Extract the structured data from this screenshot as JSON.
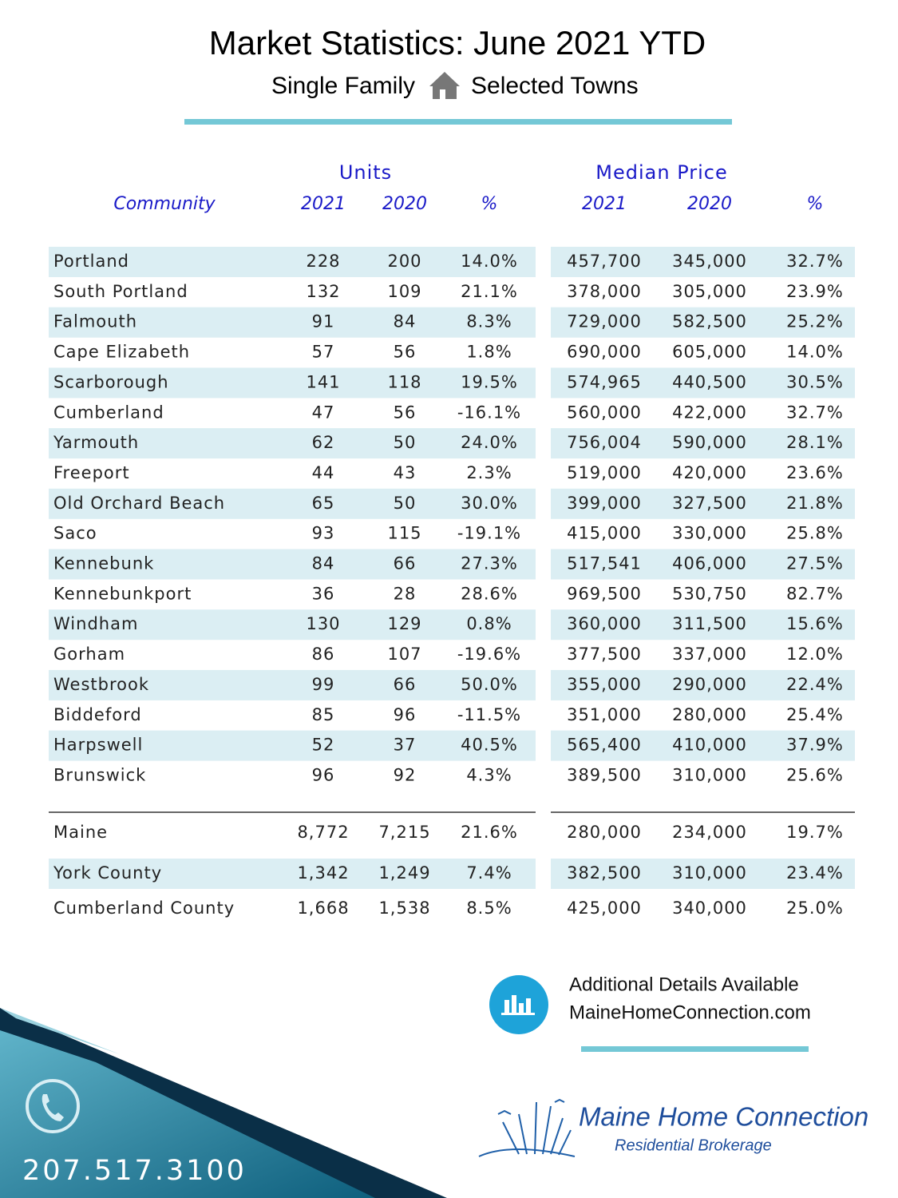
{
  "header": {
    "title": "Market Statistics: June 2021 YTD",
    "subtitle_left": "Single Family",
    "subtitle_right": "Selected Towns"
  },
  "table": {
    "group_headers": [
      "Units",
      "Median Price"
    ],
    "columns": [
      "Community",
      "2021",
      "2020",
      "%",
      "2021",
      "2020",
      "%"
    ],
    "rows": [
      [
        "Portland",
        "228",
        "200",
        "14.0%",
        "457,700",
        "345,000",
        "32.7%"
      ],
      [
        "South Portland",
        "132",
        "109",
        "21.1%",
        "378,000",
        "305,000",
        "23.9%"
      ],
      [
        "Falmouth",
        "91",
        "84",
        "8.3%",
        "729,000",
        "582,500",
        "25.2%"
      ],
      [
        "Cape Elizabeth",
        "57",
        "56",
        "1.8%",
        "690,000",
        "605,000",
        "14.0%"
      ],
      [
        "Scarborough",
        "141",
        "118",
        "19.5%",
        "574,965",
        "440,500",
        "30.5%"
      ],
      [
        "Cumberland",
        "47",
        "56",
        "-16.1%",
        "560,000",
        "422,000",
        "32.7%"
      ],
      [
        "Yarmouth",
        "62",
        "50",
        "24.0%",
        "756,004",
        "590,000",
        "28.1%"
      ],
      [
        "Freeport",
        "44",
        "43",
        "2.3%",
        "519,000",
        "420,000",
        "23.6%"
      ],
      [
        "Old Orchard Beach",
        "65",
        "50",
        "30.0%",
        "399,000",
        "327,500",
        "21.8%"
      ],
      [
        "Saco",
        "93",
        "115",
        "-19.1%",
        "415,000",
        "330,000",
        "25.8%"
      ],
      [
        "Kennebunk",
        "84",
        "66",
        "27.3%",
        "517,541",
        "406,000",
        "27.5%"
      ],
      [
        "Kennebunkport",
        "36",
        "28",
        "28.6%",
        "969,500",
        "530,750",
        "82.7%"
      ],
      [
        "Windham",
        "130",
        "129",
        "0.8%",
        "360,000",
        "311,500",
        "15.6%"
      ],
      [
        "Gorham",
        "86",
        "107",
        "-19.6%",
        "377,500",
        "337,000",
        "12.0%"
      ],
      [
        "Westbrook",
        "99",
        "66",
        "50.0%",
        "355,000",
        "290,000",
        "22.4%"
      ],
      [
        "Biddeford",
        "85",
        "96",
        "-11.5%",
        "351,000",
        "280,000",
        "25.4%"
      ],
      [
        "Harpswell",
        "52",
        "37",
        "40.5%",
        "565,400",
        "410,000",
        "37.9%"
      ],
      [
        "Brunswick",
        "96",
        "92",
        "4.3%",
        "389,500",
        "310,000",
        "25.6%"
      ]
    ],
    "summary_rows": [
      [
        "Maine",
        "8,772",
        "7,215",
        "21.6%",
        "280,000",
        "234,000",
        "19.7%"
      ],
      [
        "York County",
        "1,342",
        "1,249",
        "7.4%",
        "382,500",
        "310,000",
        "23.4%"
      ],
      [
        "Cumberland County",
        "1,668",
        "1,538",
        "8.5%",
        "425,000",
        "340,000",
        "25.0%"
      ]
    ]
  },
  "footer": {
    "details": "Additional Details Available",
    "website": "MaineHomeConnection.com",
    "phone": "207.517.3100",
    "logo_name": "Maine Home Connection",
    "logo_tagline": "Residential Brokerage"
  }
}
